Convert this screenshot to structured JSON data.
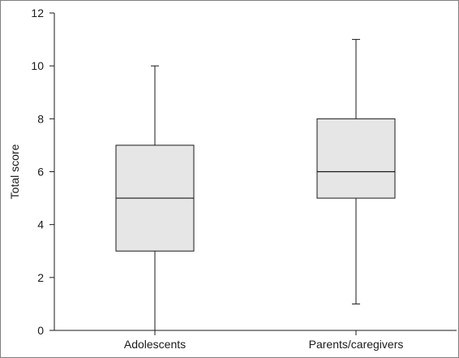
{
  "chart_data": {
    "type": "box",
    "title": "",
    "xlabel": "",
    "ylabel": "Total score",
    "ylim": [
      0,
      12
    ],
    "y_ticks": [
      0,
      2,
      4,
      6,
      8,
      10,
      12
    ],
    "y_tick_labels": [
      "0",
      "2",
      "4",
      "6",
      "8",
      "10",
      "12"
    ],
    "categories": [
      "Adolescents",
      "Parents/caregivers"
    ],
    "boxes": [
      {
        "category": "Adolescents",
        "min": 0,
        "q1": 3,
        "median": 5,
        "q3": 7,
        "max": 10
      },
      {
        "category": "Parents/caregivers",
        "min": 1,
        "q1": 5,
        "median": 6,
        "q3": 8,
        "max": 11
      }
    ],
    "grid": false,
    "legend": "none",
    "colors": {
      "box_fill": "#e6e6e6",
      "stroke": "#1a1a1a",
      "axis": "#1a1a1a"
    }
  }
}
